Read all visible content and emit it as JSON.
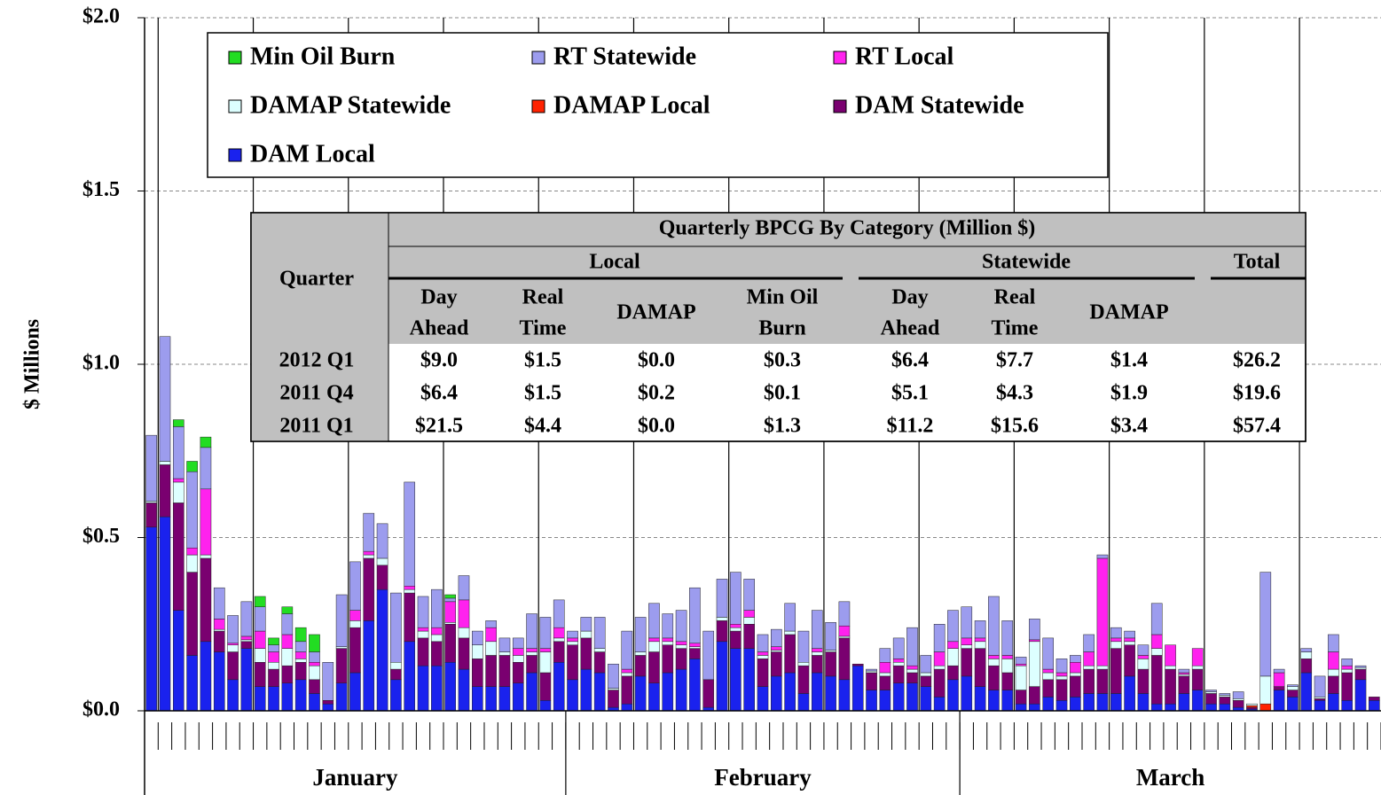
{
  "chart_data": {
    "type": "stacked-bar",
    "y_label": "$ Millions",
    "ylim": [
      0,
      2
    ],
    "yticks": [
      {
        "value": 0,
        "label": "$0.0"
      },
      {
        "value": 0.5,
        "label": "$0.5"
      },
      {
        "value": 1,
        "label": "$1.0"
      },
      {
        "value": 1.5,
        "label": "$1.5"
      },
      {
        "value": 2,
        "label": "$2.0"
      }
    ],
    "grid": true,
    "categories": [
      null,
      null,
      null,
      null,
      null,
      null,
      null,
      null,
      null,
      null,
      null,
      null,
      null,
      null,
      null,
      null,
      null,
      null,
      null,
      null,
      null,
      null,
      null,
      null,
      null,
      null,
      null,
      null,
      null,
      null,
      null,
      null,
      null,
      null,
      null,
      null,
      null,
      null,
      null,
      null,
      null,
      null,
      null,
      null,
      null,
      null,
      null,
      null,
      null,
      null,
      null,
      null,
      null,
      null,
      null,
      null,
      null,
      null,
      null,
      null,
      null,
      null,
      null,
      null,
      null,
      null,
      null,
      null,
      null,
      null,
      null,
      null,
      null,
      null,
      null,
      null,
      null,
      null,
      null,
      null,
      null,
      null,
      null,
      null,
      null,
      null,
      null,
      null,
      null,
      null,
      null
    ],
    "x_groups": [
      {
        "label": "January",
        "count": 31
      },
      {
        "label": "February",
        "count": 29
      },
      {
        "label": "March",
        "count": 31
      }
    ],
    "legend_columns": 3,
    "series": [
      {
        "name": "Min Oil Burn",
        "color": "#22dd22",
        "values": [
          0,
          0,
          0.02,
          0.03,
          0.03,
          0,
          0,
          0,
          0.03,
          0.02,
          0.02,
          0.04,
          0.05,
          0,
          0,
          0,
          0,
          0,
          0,
          0,
          0,
          0,
          0.01,
          0,
          0,
          0,
          0,
          0,
          0,
          0,
          0,
          0,
          0,
          0,
          0,
          0,
          0,
          0,
          0,
          0,
          0,
          0,
          0,
          0,
          0,
          0,
          0,
          0,
          0,
          0,
          0,
          0,
          0,
          0,
          0,
          0,
          0,
          0,
          0,
          0,
          0,
          0,
          0,
          0,
          0,
          0,
          0,
          0,
          0,
          0,
          0,
          0,
          0,
          0,
          0,
          0,
          0,
          0,
          0,
          0,
          0,
          0,
          0,
          0,
          0,
          0,
          0,
          0,
          0,
          0,
          0
        ]
      },
      {
        "name": "RT Statewide",
        "color": "#9c9cee",
        "values": [
          0.19,
          0.36,
          0.15,
          0.22,
          0.12,
          0.09,
          0.08,
          0.1,
          0.07,
          0.02,
          0.06,
          0.03,
          0.03,
          0.11,
          0.15,
          0.14,
          0.11,
          0.1,
          0.2,
          0.3,
          0.09,
          0.11,
          0.01,
          0.07,
          0.04,
          0.02,
          0.04,
          0.03,
          0.1,
          0.09,
          0.08,
          0.02,
          0.04,
          0.09,
          0.07,
          0.11,
          0.1,
          0.1,
          0.07,
          0.09,
          0.16,
          0.14,
          0.11,
          0.15,
          0.09,
          0.05,
          0.05,
          0.08,
          0.09,
          0.11,
          0.08,
          0.07,
          0,
          0.005,
          0.04,
          0.06,
          0.11,
          0.05,
          0.08,
          0.09,
          0.09,
          0.05,
          0.17,
          0.1,
          0.02,
          0.06,
          0.09,
          0.04,
          0.02,
          0.05,
          0.01,
          0.03,
          0.02,
          0.03,
          0.09,
          0,
          0.01,
          0,
          0.005,
          0.005,
          0.02,
          0,
          0.3,
          0.01,
          0.005,
          0.01,
          0.06,
          0.05,
          0.02,
          0.005,
          0
        ]
      },
      {
        "name": "RT Local",
        "color": "#ff22ee",
        "values": [
          0,
          0,
          0.01,
          0.02,
          0.19,
          0.03,
          0.005,
          0.01,
          0.05,
          0.03,
          0.04,
          0.02,
          0.01,
          0,
          0,
          0.03,
          0.01,
          0,
          0,
          0.01,
          0.01,
          0.02,
          0.06,
          0.08,
          0,
          0.04,
          0,
          0.02,
          0.01,
          0.01,
          0.03,
          0.01,
          0,
          0,
          0,
          0.01,
          0,
          0.01,
          0.01,
          0.01,
          0.01,
          0,
          0,
          0.01,
          0.02,
          0.01,
          0.01,
          0,
          0,
          0.01,
          0,
          0.03,
          0,
          0,
          0.03,
          0.01,
          0.01,
          0,
          0.04,
          0.02,
          0.02,
          0.01,
          0.01,
          0.01,
          0.005,
          0.005,
          0.01,
          0.01,
          0.03,
          0.04,
          0.31,
          0.01,
          0.01,
          0.01,
          0.04,
          0.06,
          0.005,
          0.05,
          0,
          0,
          0,
          0,
          0,
          0.04,
          0,
          0,
          0,
          0.05,
          0.01,
          0,
          0
        ]
      },
      {
        "name": "DAMAP Statewide",
        "color": "#ddffff",
        "values": [
          0.005,
          0.01,
          0.06,
          0.05,
          0.01,
          0.005,
          0.02,
          0.005,
          0.04,
          0.02,
          0.05,
          0.01,
          0.04,
          0,
          0.005,
          0.02,
          0.01,
          0.02,
          0.02,
          0.01,
          0.02,
          0.02,
          0.005,
          0.03,
          0.04,
          0.04,
          0.01,
          0.02,
          0.01,
          0.06,
          0.01,
          0.01,
          0.02,
          0.01,
          0.005,
          0.01,
          0.01,
          0.03,
          0.01,
          0.01,
          0.005,
          0,
          0.01,
          0.01,
          0.02,
          0.01,
          0.005,
          0.01,
          0.01,
          0.01,
          0.005,
          0.005,
          0,
          0.005,
          0.01,
          0.01,
          0.01,
          0.01,
          0.01,
          0.05,
          0.01,
          0.02,
          0.02,
          0.04,
          0.07,
          0.13,
          0.02,
          0.01,
          0.01,
          0.01,
          0.01,
          0.02,
          0.01,
          0.03,
          0.02,
          0.01,
          0.005,
          0.01,
          0.005,
          0.005,
          0.005,
          0.005,
          0.08,
          0,
          0.01,
          0.02,
          0.005,
          0.02,
          0.01,
          0.005,
          0
        ]
      },
      {
        "name": "DAMAP Local",
        "color": "#ff2200",
        "values": [
          0,
          0,
          0,
          0,
          0,
          0,
          0,
          0,
          0,
          0,
          0,
          0,
          0,
          0,
          0,
          0,
          0,
          0,
          0,
          0,
          0,
          0,
          0,
          0,
          0,
          0,
          0,
          0,
          0,
          0,
          0,
          0,
          0,
          0,
          0,
          0,
          0,
          0,
          0,
          0,
          0,
          0,
          0,
          0,
          0,
          0,
          0,
          0,
          0,
          0,
          0,
          0,
          0,
          0,
          0,
          0,
          0,
          0,
          0,
          0,
          0,
          0,
          0,
          0,
          0,
          0,
          0,
          0,
          0,
          0,
          0,
          0,
          0,
          0,
          0,
          0,
          0,
          0,
          0,
          0,
          0,
          0.005,
          0.02,
          0,
          0,
          0,
          0,
          0,
          0,
          0,
          0
        ]
      },
      {
        "name": "DAM Statewide",
        "color": "#7a0070",
        "values": [
          0.07,
          0.15,
          0.31,
          0.24,
          0.24,
          0.06,
          0.08,
          0.02,
          0.07,
          0.05,
          0.05,
          0.05,
          0.04,
          0.01,
          0.1,
          0.13,
          0.18,
          0.07,
          0.03,
          0.14,
          0.08,
          0.07,
          0.11,
          0.09,
          0.08,
          0.09,
          0.09,
          0.06,
          0.05,
          0.08,
          0.06,
          0.1,
          0.09,
          0.06,
          0.05,
          0.08,
          0.06,
          0.09,
          0.08,
          0.06,
          0.03,
          0.08,
          0.06,
          0.05,
          0.07,
          0.08,
          0.07,
          0.11,
          0.08,
          0.05,
          0.07,
          0.12,
          0.005,
          0.05,
          0.04,
          0.05,
          0.03,
          0.03,
          0.08,
          0.04,
          0.08,
          0.11,
          0.07,
          0.05,
          0.04,
          0.05,
          0.05,
          0.06,
          0.06,
          0.07,
          0.07,
          0.13,
          0.09,
          0.07,
          0.14,
          0.1,
          0.05,
          0.06,
          0.03,
          0.02,
          0.02,
          0.005,
          0,
          0.01,
          0.02,
          0.04,
          0.005,
          0.05,
          0.08,
          0.03,
          0.01
        ]
      },
      {
        "name": "DAM Local",
        "color": "#1a22ee",
        "values": [
          0.53,
          0.56,
          0.29,
          0.16,
          0.2,
          0.17,
          0.09,
          0.18,
          0.07,
          0.07,
          0.08,
          0.09,
          0.05,
          0.02,
          0.08,
          0.11,
          0.26,
          0.35,
          0.09,
          0.2,
          0.13,
          0.13,
          0.14,
          0.12,
          0.07,
          0.07,
          0.07,
          0.08,
          0.11,
          0.03,
          0.14,
          0.09,
          0.12,
          0.11,
          0.01,
          0.02,
          0.1,
          0.08,
          0.11,
          0.12,
          0.15,
          0.01,
          0.2,
          0.18,
          0.18,
          0.07,
          0.1,
          0.11,
          0.05,
          0.11,
          0.1,
          0.09,
          0.13,
          0.06,
          0.06,
          0.08,
          0.08,
          0.07,
          0.04,
          0.09,
          0.1,
          0.07,
          0.06,
          0.06,
          0.02,
          0.02,
          0.04,
          0.03,
          0.04,
          0.05,
          0.05,
          0.05,
          0.1,
          0.05,
          0.02,
          0.02,
          0.05,
          0.06,
          0.02,
          0.02,
          0.01,
          0.005,
          0,
          0.06,
          0.04,
          0.11,
          0.03,
          0.05,
          0.03,
          0.09,
          0.03
        ]
      }
    ],
    "table": {
      "title": "Quarterly BPCG By Category (Million $)",
      "corner": "Quarter",
      "groups": [
        "Local",
        "Statewide",
        "Total"
      ],
      "columns": [
        [
          "Day",
          "Ahead"
        ],
        [
          "Real",
          "Time"
        ],
        [
          "DAMAP"
        ],
        [
          "Min Oil",
          "Burn"
        ],
        [
          "Day",
          "Ahead"
        ],
        [
          "Real",
          "Time"
        ],
        [
          "DAMAP"
        ]
      ],
      "rows": [
        [
          "2012 Q1",
          "$9.0",
          "$1.5",
          "$0.0",
          "$0.3",
          "$6.4",
          "$7.7",
          "$1.4",
          "$26.2"
        ],
        [
          "2011 Q4",
          "$6.4",
          "$1.5",
          "$0.2",
          "$0.1",
          "$5.1",
          "$4.3",
          "$1.9",
          "$19.6"
        ],
        [
          "2011 Q1",
          "$21.5",
          "$4.4",
          "$0.0",
          "$1.3",
          "$11.2",
          "$15.6",
          "$3.4",
          "$57.4"
        ]
      ]
    }
  }
}
